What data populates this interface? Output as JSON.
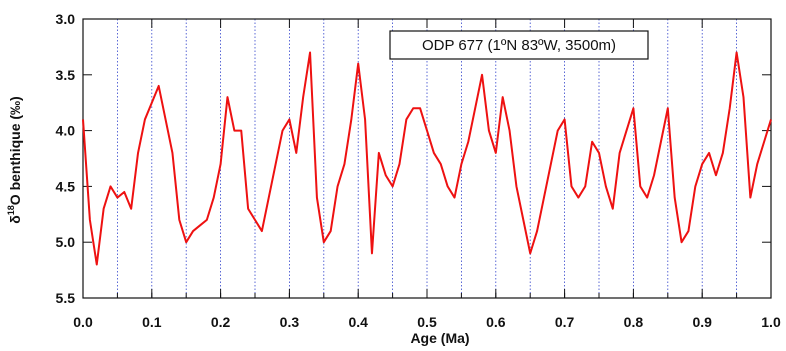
{
  "chart_data": {
    "type": "line",
    "y_label": [
      "δ",
      "18",
      "O benthique (‰)"
    ],
    "x_label": "Age (Ma)",
    "annotation": "ODP 677 (1ºN 83ºW, 3500m)",
    "xlim": [
      0,
      1
    ],
    "ylim": [
      3,
      5.5
    ],
    "y_reversed": true,
    "xticks": [
      {
        "value": 0,
        "label": "0.0"
      },
      {
        "value": 0.1,
        "label": "0.1"
      },
      {
        "value": 0.2,
        "label": "0.2"
      },
      {
        "value": 0.3,
        "label": "0.3"
      },
      {
        "value": 0.4,
        "label": "0.4"
      },
      {
        "value": 0.5,
        "label": "0.5"
      },
      {
        "value": 0.6,
        "label": "0.6"
      },
      {
        "value": 0.7,
        "label": "0.7"
      },
      {
        "value": 0.8,
        "label": "0.8"
      },
      {
        "value": 0.9,
        "label": "0.9"
      },
      {
        "value": 1,
        "label": "1.0"
      }
    ],
    "yticks": [
      {
        "value": 3,
        "label": "3.0"
      },
      {
        "value": 3.5,
        "label": "3.5"
      },
      {
        "value": 4,
        "label": "4.0"
      },
      {
        "value": 4.5,
        "label": "4.5"
      },
      {
        "value": 5,
        "label": "5.0"
      },
      {
        "value": 5.5,
        "label": "5.5"
      }
    ],
    "xgrid": [
      0.05,
      0.1,
      0.15,
      0.2,
      0.25,
      0.3,
      0.35,
      0.4,
      0.45,
      0.5,
      0.55,
      0.6,
      0.65,
      0.7,
      0.75,
      0.8,
      0.85,
      0.9,
      0.95
    ],
    "grid_color": "#3344cc",
    "x": [
      0,
      0.01,
      0.02,
      0.03,
      0.04,
      0.05,
      0.06,
      0.07,
      0.08,
      0.09,
      0.1,
      0.11,
      0.12,
      0.13,
      0.14,
      0.15,
      0.16,
      0.17,
      0.18,
      0.19,
      0.2,
      0.21,
      0.22,
      0.23,
      0.24,
      0.25,
      0.26,
      0.27,
      0.28,
      0.29,
      0.3,
      0.31,
      0.32,
      0.33,
      0.34,
      0.35,
      0.36,
      0.37,
      0.38,
      0.39,
      0.4,
      0.41,
      0.42,
      0.43,
      0.44,
      0.45,
      0.46,
      0.47,
      0.48,
      0.49,
      0.5,
      0.51,
      0.52,
      0.53,
      0.54,
      0.55,
      0.56,
      0.57,
      0.58,
      0.59,
      0.6,
      0.61,
      0.62,
      0.63,
      0.64,
      0.65,
      0.66,
      0.67,
      0.68,
      0.69,
      0.7,
      0.71,
      0.72,
      0.73,
      0.74,
      0.75,
      0.76,
      0.77,
      0.78,
      0.79,
      0.8,
      0.81,
      0.82,
      0.83,
      0.84,
      0.85,
      0.86,
      0.87,
      0.88,
      0.89,
      0.9,
      0.91,
      0.92,
      0.93,
      0.94,
      0.95,
      0.96,
      0.97,
      0.98,
      0.99,
      1
    ],
    "series": [
      {
        "color": "#ee1111",
        "values": [
          3.9,
          4.8,
          5.2,
          4.7,
          4.5,
          4.6,
          4.55,
          4.7,
          4.2,
          3.9,
          3.75,
          3.6,
          3.9,
          4.2,
          4.8,
          5.0,
          4.9,
          4.85,
          4.8,
          4.6,
          4.3,
          3.7,
          4.0,
          4.0,
          4.7,
          4.8,
          4.9,
          4.6,
          4.3,
          4.0,
          3.9,
          4.2,
          3.7,
          3.3,
          4.6,
          5.0,
          4.9,
          4.5,
          4.3,
          3.9,
          3.4,
          3.9,
          5.1,
          4.2,
          4.4,
          4.5,
          4.3,
          3.9,
          3.8,
          3.8,
          4.0,
          4.2,
          4.3,
          4.5,
          4.6,
          4.3,
          4.1,
          3.8,
          3.5,
          4.0,
          4.2,
          3.7,
          4.0,
          4.5,
          4.8,
          5.1,
          4.9,
          4.6,
          4.3,
          4.0,
          3.9,
          4.5,
          4.6,
          4.5,
          4.1,
          4.2,
          4.5,
          4.7,
          4.2,
          4.0,
          3.8,
          4.5,
          4.6,
          4.4,
          4.1,
          3.8,
          4.6,
          5.0,
          4.9,
          4.5,
          4.3,
          4.2,
          4.4,
          4.2,
          3.8,
          3.3,
          3.7,
          4.6,
          4.3,
          4.1,
          3.9
        ]
      }
    ]
  }
}
